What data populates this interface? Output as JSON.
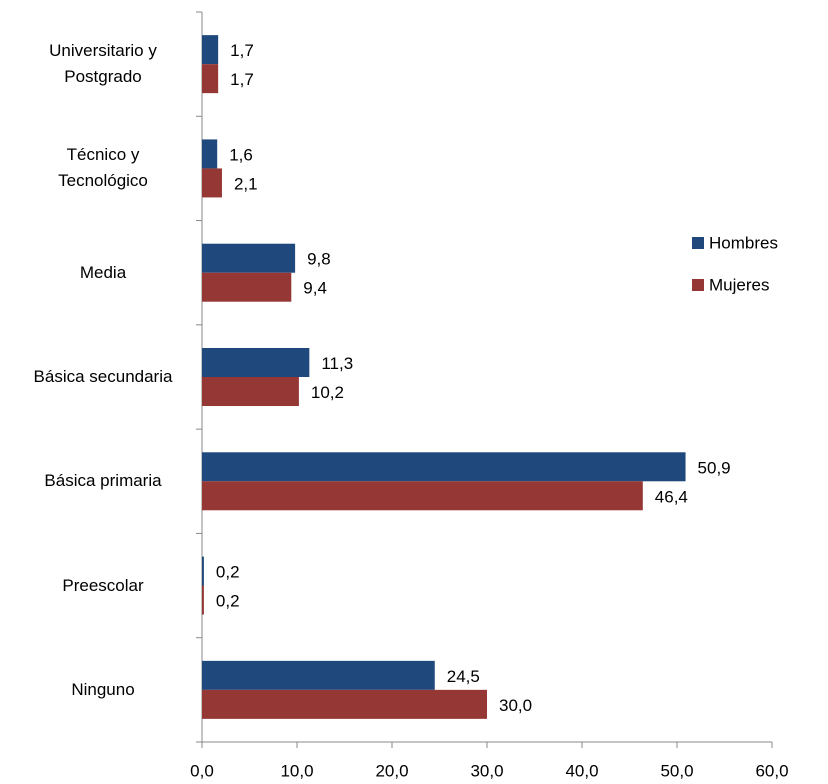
{
  "chart_data": {
    "type": "hbar",
    "categories": [
      "Ninguno",
      "Preescolar",
      "Básica primaria",
      "Básica secundaria",
      "Media",
      "Técnico y Tecnológico",
      "Universitario y Postgrado"
    ],
    "series": [
      {
        "name": "Hombres",
        "color": "#1f497d",
        "values": [
          24.5,
          0.2,
          50.9,
          11.3,
          9.8,
          1.6,
          1.7
        ],
        "value_labels": [
          "24,5",
          "0,2",
          "50,9",
          "11,3",
          "9,8",
          "1,6",
          "1,7"
        ]
      },
      {
        "name": "Mujeres",
        "color": "#953735",
        "values": [
          30.0,
          0.2,
          46.4,
          10.2,
          9.4,
          2.1,
          1.7
        ],
        "value_labels": [
          "30,0",
          "0,2",
          "46,4",
          "10,2",
          "9,4",
          "2,1",
          "1,7"
        ]
      }
    ],
    "xlim": [
      0,
      60
    ],
    "xticks": [
      {
        "value": 0,
        "label": "0,0"
      },
      {
        "value": 10,
        "label": "10,0"
      },
      {
        "value": 20,
        "label": "20,0"
      },
      {
        "value": 30,
        "label": "30,0"
      },
      {
        "value": 40,
        "label": "40,0"
      },
      {
        "value": 50,
        "label": "50,0"
      },
      {
        "value": 60,
        "label": "60,0"
      }
    ],
    "legend": "right"
  }
}
